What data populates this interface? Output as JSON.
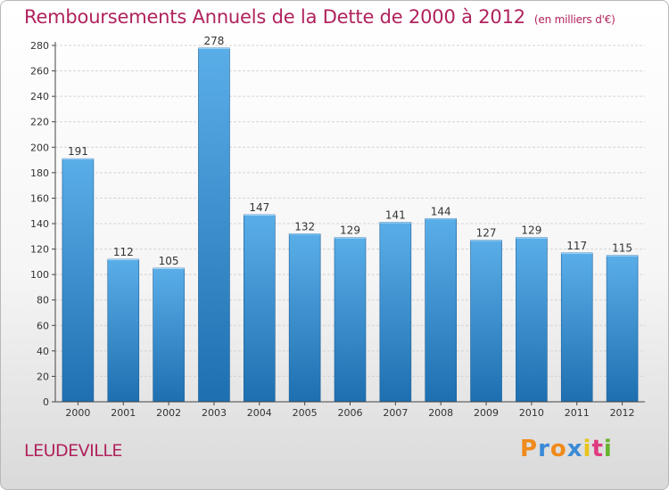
{
  "header": {
    "title": "Remboursements Annuels de la Dette de 2000 à 2012",
    "unit": "(en milliers d'€)"
  },
  "footer": {
    "town": "LEUDEVILLE",
    "logo_letters": [
      "P",
      "r",
      "o",
      "x",
      "i",
      "t",
      "i"
    ],
    "logo_colors": [
      "#f08a1c",
      "#3a8ad6",
      "#f08a1c",
      "#3a8ad6",
      "#e8c41a",
      "#e03a80",
      "#66b32e"
    ]
  },
  "chart_data": {
    "type": "bar",
    "categories": [
      "2000",
      "2001",
      "2002",
      "2003",
      "2004",
      "2005",
      "2006",
      "2007",
      "2008",
      "2009",
      "2010",
      "2011",
      "2012"
    ],
    "values": [
      191,
      112,
      105,
      278,
      147,
      132,
      129,
      141,
      144,
      127,
      129,
      117,
      115
    ],
    "data_labels": [
      "191",
      "112",
      "105",
      "278",
      "147",
      "132",
      "129",
      "141",
      "144",
      "127",
      "129",
      "117",
      "115"
    ],
    "title": "Remboursements Annuels de la Dette de 2000 à 2012",
    "ylim": [
      0,
      280
    ],
    "yticks": [
      "0",
      "20",
      "40",
      "60",
      "80",
      "100",
      "120",
      "140",
      "160",
      "180",
      "200",
      "220",
      "240",
      "260",
      "280"
    ],
    "grid": true,
    "bar_color_top": "#5aaee8",
    "bar_color_bottom": "#1e6fb0"
  }
}
